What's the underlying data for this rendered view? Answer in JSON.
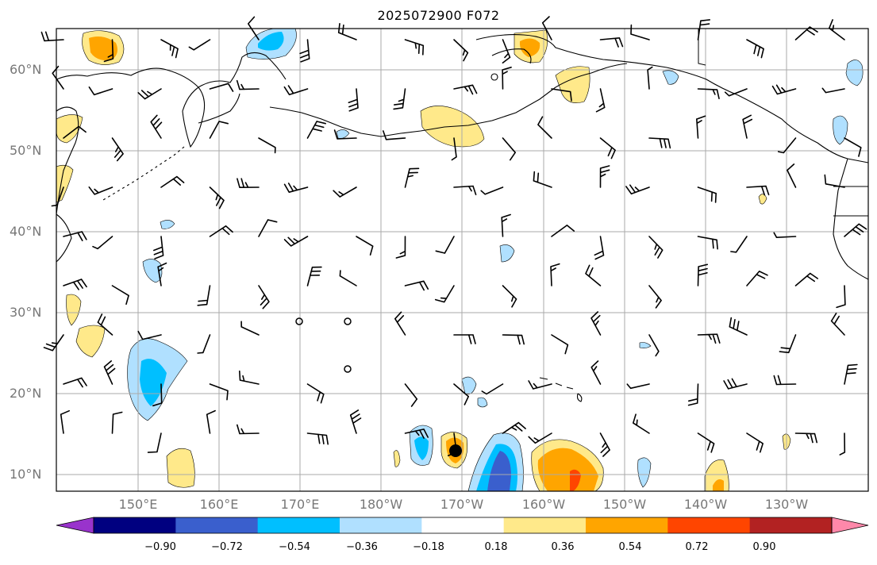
{
  "title": "2025072900 F072",
  "lat_labels": [
    "60°N",
    "50°N",
    "40°N",
    "30°N",
    "20°N",
    "10°N"
  ],
  "lon_labels": [
    "150°E",
    "160°E",
    "170°E",
    "180°W",
    "170°W",
    "160°W",
    "150°W",
    "140°W",
    "130°W"
  ],
  "colorbar": {
    "labels": [
      "−0.90",
      "−0.72",
      "−0.54",
      "−0.36",
      "−0.18",
      "0.18",
      "0.36",
      "0.54",
      "0.72",
      "0.90"
    ],
    "colors": [
      "#9933cc",
      "#000080",
      "#3a5fcd",
      "#00bfff",
      "#b0e0ff",
      "#ffffff",
      "#ffe98a",
      "#ffa500",
      "#ff4500",
      "#b22222",
      "#ff88aa"
    ]
  },
  "map_colors": {
    "land_line": "#000000",
    "grid": "#aaaaaa",
    "barb": "#000000",
    "cyclone_marker": "#000000"
  }
}
